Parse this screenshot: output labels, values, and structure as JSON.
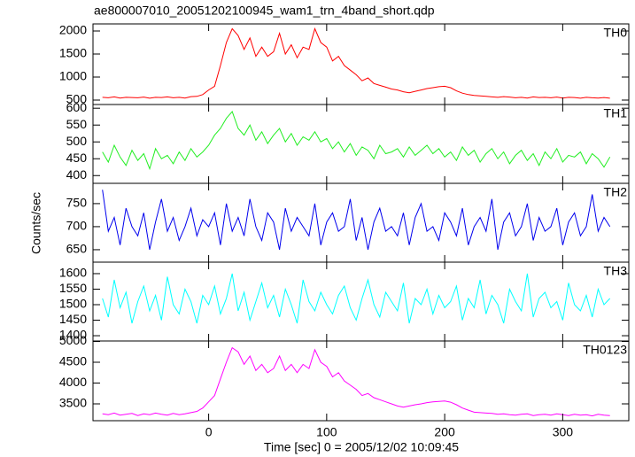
{
  "title": "ae800007010_20051202100945_wam1_trn_4band_short.qdp",
  "xlabel": "Time [sec] 0 = 2005/12/02 10:09:45",
  "ylabel": "Counts/sec",
  "chart_data": [
    {
      "type": "line",
      "x": [
        -90,
        -85,
        -80,
        -75,
        -70,
        -65,
        -60,
        -55,
        -50,
        -45,
        -40,
        -35,
        -30,
        -25,
        -20,
        -15,
        -10,
        -5,
        0,
        5,
        10,
        15,
        20,
        25,
        30,
        35,
        40,
        45,
        50,
        55,
        60,
        65,
        70,
        75,
        80,
        85,
        90,
        95,
        100,
        105,
        110,
        115,
        120,
        125,
        130,
        135,
        140,
        145,
        150,
        155,
        160,
        165,
        170,
        175,
        180,
        185,
        190,
        195,
        200,
        205,
        210,
        215,
        220,
        225,
        230,
        235,
        240,
        245,
        250,
        255,
        260,
        265,
        270,
        275,
        280,
        285,
        290,
        295,
        300,
        305,
        310,
        315,
        320,
        325,
        330,
        335,
        340
      ],
      "series": [
        {
          "name": "TH0",
          "color": "#ff0000",
          "values": [
            560,
            550,
            570,
            545,
            560,
            555,
            550,
            565,
            540,
            560,
            555,
            570,
            550,
            560,
            545,
            575,
            580,
            620,
            720,
            800,
            1250,
            1750,
            2050,
            1900,
            1600,
            1850,
            1450,
            1650,
            1450,
            1550,
            1950,
            1500,
            1700,
            1420,
            1650,
            1600,
            2050,
            1750,
            1650,
            1350,
            1450,
            1250,
            1150,
            1050,
            920,
            980,
            860,
            820,
            780,
            740,
            720,
            680,
            660,
            690,
            720,
            750,
            770,
            790,
            800,
            770,
            700,
            650,
            620,
            600,
            590,
            580,
            570,
            560,
            575,
            565,
            550,
            560,
            545,
            570,
            555,
            560,
            550,
            565,
            545,
            560,
            555,
            540,
            560,
            550,
            545,
            555,
            540
          ]
        }
      ],
      "xlim": [
        -98,
        356
      ],
      "xticks": [
        0,
        100,
        200,
        300
      ],
      "ylim": [
        404,
        2154
      ],
      "yticks": [
        500,
        1000,
        1500,
        2000
      ]
    },
    {
      "type": "line",
      "x": [
        -90,
        -85,
        -80,
        -75,
        -70,
        -65,
        -60,
        -55,
        -50,
        -45,
        -40,
        -35,
        -30,
        -25,
        -20,
        -15,
        -10,
        -5,
        0,
        5,
        10,
        15,
        20,
        25,
        30,
        35,
        40,
        45,
        50,
        55,
        60,
        65,
        70,
        75,
        80,
        85,
        90,
        95,
        100,
        105,
        110,
        115,
        120,
        125,
        130,
        135,
        140,
        145,
        150,
        155,
        160,
        165,
        170,
        175,
        180,
        185,
        190,
        195,
        200,
        205,
        210,
        215,
        220,
        225,
        230,
        235,
        240,
        245,
        250,
        255,
        260,
        265,
        270,
        275,
        280,
        285,
        290,
        295,
        300,
        305,
        310,
        315,
        320,
        325,
        330,
        335,
        340
      ],
      "series": [
        {
          "name": "TH1",
          "color": "#22ee22",
          "values": [
            470,
            440,
            490,
            455,
            430,
            475,
            445,
            465,
            420,
            480,
            450,
            460,
            435,
            470,
            445,
            480,
            455,
            470,
            490,
            520,
            540,
            570,
            590,
            540,
            520,
            550,
            505,
            530,
            495,
            520,
            540,
            500,
            525,
            490,
            515,
            505,
            530,
            500,
            510,
            480,
            500,
            470,
            495,
            460,
            485,
            475,
            450,
            490,
            465,
            470,
            480,
            455,
            485,
            460,
            475,
            490,
            465,
            480,
            455,
            470,
            445,
            485,
            460,
            475,
            440,
            465,
            480,
            450,
            470,
            435,
            460,
            475,
            445,
            465,
            430,
            470,
            450,
            480,
            440,
            460,
            455,
            470,
            435,
            465,
            450,
            425,
            455
          ]
        }
      ],
      "xlim": [
        -98,
        356
      ],
      "xticks": [
        0,
        100,
        200,
        300
      ],
      "ylim": [
        377,
        611
      ],
      "yticks": [
        400,
        450,
        500,
        550,
        600
      ]
    },
    {
      "type": "line",
      "x": [
        -90,
        -85,
        -80,
        -75,
        -70,
        -65,
        -60,
        -55,
        -50,
        -45,
        -40,
        -35,
        -30,
        -25,
        -20,
        -15,
        -10,
        -5,
        0,
        5,
        10,
        15,
        20,
        25,
        30,
        35,
        40,
        45,
        50,
        55,
        60,
        65,
        70,
        75,
        80,
        85,
        90,
        95,
        100,
        105,
        110,
        115,
        120,
        125,
        130,
        135,
        140,
        145,
        150,
        155,
        160,
        165,
        170,
        175,
        180,
        185,
        190,
        195,
        200,
        205,
        210,
        215,
        220,
        225,
        230,
        235,
        240,
        245,
        250,
        255,
        260,
        265,
        270,
        275,
        280,
        285,
        290,
        295,
        300,
        305,
        310,
        315,
        320,
        325,
        330,
        335,
        340
      ],
      "series": [
        {
          "name": "TH2",
          "color": "#0000ee",
          "values": [
            780,
            690,
            720,
            660,
            740,
            700,
            680,
            730,
            650,
            710,
            760,
            690,
            720,
            670,
            700,
            740,
            680,
            715,
            700,
            730,
            660,
            750,
            690,
            720,
            680,
            760,
            700,
            670,
            730,
            710,
            650,
            740,
            690,
            720,
            700,
            680,
            750,
            660,
            710,
            730,
            690,
            700,
            760,
            670,
            720,
            650,
            710,
            740,
            690,
            700,
            680,
            730,
            660,
            720,
            750,
            690,
            700,
            670,
            730,
            710,
            680,
            740,
            660,
            700,
            720,
            690,
            760,
            650,
            710,
            730,
            680,
            700,
            750,
            670,
            720,
            690,
            700,
            740,
            660,
            710,
            730,
            680,
            700,
            770,
            690,
            720,
            700
          ]
        }
      ],
      "xlim": [
        -98,
        356
      ],
      "xticks": [
        0,
        100,
        200,
        300
      ],
      "ylim": [
        623,
        794
      ],
      "yticks": [
        650,
        700,
        750
      ]
    },
    {
      "type": "line",
      "x": [
        -90,
        -85,
        -80,
        -75,
        -70,
        -65,
        -60,
        -55,
        -50,
        -45,
        -40,
        -35,
        -30,
        -25,
        -20,
        -15,
        -10,
        -5,
        0,
        5,
        10,
        15,
        20,
        25,
        30,
        35,
        40,
        45,
        50,
        55,
        60,
        65,
        70,
        75,
        80,
        85,
        90,
        95,
        100,
        105,
        110,
        115,
        120,
        125,
        130,
        135,
        140,
        145,
        150,
        155,
        160,
        165,
        170,
        175,
        180,
        185,
        190,
        195,
        200,
        205,
        210,
        215,
        220,
        225,
        230,
        235,
        240,
        245,
        250,
        255,
        260,
        265,
        270,
        275,
        280,
        285,
        290,
        295,
        300,
        305,
        310,
        315,
        320,
        325,
        330,
        335,
        340
      ],
      "series": [
        {
          "name": "TH3",
          "color": "#00ffff",
          "values": [
            1520,
            1460,
            1580,
            1490,
            1540,
            1440,
            1510,
            1560,
            1480,
            1530,
            1450,
            1590,
            1500,
            1470,
            1550,
            1510,
            1440,
            1530,
            1500,
            1560,
            1470,
            1520,
            1600,
            1480,
            1540,
            1450,
            1510,
            1570,
            1490,
            1530,
            1460,
            1550,
            1500,
            1440,
            1580,
            1510,
            1480,
            1540,
            1500,
            1470,
            1530,
            1560,
            1490,
            1450,
            1520,
            1580,
            1500,
            1460,
            1540,
            1510,
            1480,
            1570,
            1440,
            1520,
            1500,
            1550,
            1470,
            1530,
            1490,
            1510,
            1560,
            1450,
            1520,
            1490,
            1580,
            1470,
            1530,
            1500,
            1440,
            1550,
            1510,
            1480,
            1600,
            1460,
            1520,
            1540,
            1490,
            1510,
            1450,
            1570,
            1500,
            1480,
            1530,
            1460,
            1550,
            1500,
            1520
          ]
        }
      ],
      "xlim": [
        -98,
        356
      ],
      "xticks": [
        0,
        100,
        200,
        300
      ],
      "ylim": [
        1383,
        1637
      ],
      "yticks": [
        1400,
        1450,
        1500,
        1550,
        1600
      ]
    },
    {
      "type": "line",
      "x": [
        -90,
        -85,
        -80,
        -75,
        -70,
        -65,
        -60,
        -55,
        -50,
        -45,
        -40,
        -35,
        -30,
        -25,
        -20,
        -15,
        -10,
        -5,
        0,
        5,
        10,
        15,
        20,
        25,
        30,
        35,
        40,
        45,
        50,
        55,
        60,
        65,
        70,
        75,
        80,
        85,
        90,
        95,
        100,
        105,
        110,
        115,
        120,
        125,
        130,
        135,
        140,
        145,
        150,
        155,
        160,
        165,
        170,
        175,
        180,
        185,
        190,
        195,
        200,
        205,
        210,
        215,
        220,
        225,
        230,
        235,
        240,
        245,
        250,
        255,
        260,
        265,
        270,
        275,
        280,
        285,
        290,
        295,
        300,
        305,
        310,
        315,
        320,
        325,
        330,
        335,
        340
      ],
      "series": [
        {
          "name": "TH0123",
          "color": "#ff00ff",
          "values": [
            3260,
            3240,
            3280,
            3230,
            3250,
            3270,
            3220,
            3260,
            3240,
            3280,
            3250,
            3230,
            3270,
            3240,
            3260,
            3290,
            3320,
            3400,
            3550,
            3700,
            4100,
            4500,
            4850,
            4750,
            4450,
            4650,
            4300,
            4450,
            4250,
            4350,
            4650,
            4300,
            4450,
            4250,
            4450,
            4350,
            4800,
            4500,
            4400,
            4150,
            4250,
            4050,
            3950,
            3850,
            3700,
            3750,
            3650,
            3600,
            3550,
            3500,
            3450,
            3420,
            3450,
            3480,
            3500,
            3530,
            3550,
            3560,
            3570,
            3540,
            3480,
            3400,
            3350,
            3300,
            3290,
            3280,
            3270,
            3250,
            3260,
            3240,
            3230,
            3250,
            3260,
            3220,
            3240,
            3250,
            3230,
            3260,
            3240,
            3220,
            3250,
            3230,
            3240,
            3210,
            3250,
            3230,
            3220
          ]
        }
      ],
      "xlim": [
        -98,
        356
      ],
      "xticks": [
        0,
        100,
        200,
        300
      ],
      "ylim": [
        3096,
        5011
      ],
      "yticks": [
        3500,
        4000,
        4500,
        5000
      ]
    }
  ]
}
